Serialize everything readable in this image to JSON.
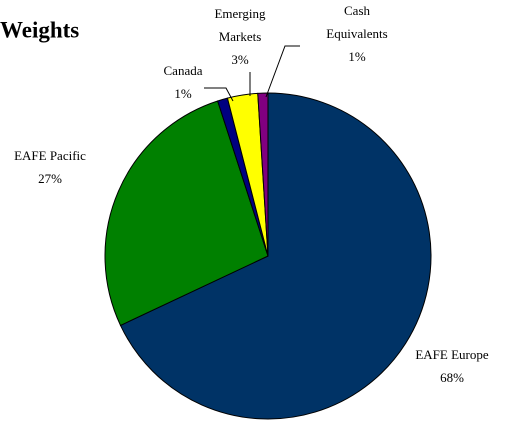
{
  "chart_data": {
    "type": "pie",
    "title": "Weights",
    "categories": [
      "EAFE Europe",
      "EAFE Pacific",
      "Canada",
      "Emerging Markets",
      "Cash Equivalents"
    ],
    "values": [
      68,
      27,
      1,
      3,
      1
    ],
    "value_labels": [
      "68%",
      "27%",
      "1%",
      "3%",
      "1%"
    ],
    "colors": [
      "#003366",
      "#008000",
      "#000080",
      "#ffff00",
      "#800080"
    ]
  }
}
